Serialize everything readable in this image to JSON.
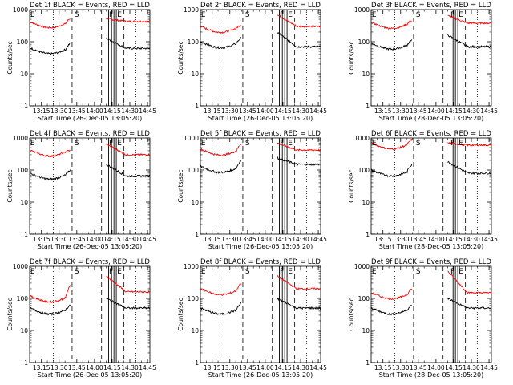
{
  "chart_data": [
    {
      "type": "line",
      "title": "Det 1f BLACK = Events, RED = LLD",
      "ylabel": "Counts/sec",
      "xlabel": "Start Time (26-Dec-05 13:05:20)",
      "yscale": "log",
      "ylim": [
        1,
        1000
      ],
      "xlim": [
        "13:05",
        "14:47"
      ],
      "xticks": [
        "13:15",
        "13:30",
        "13:45",
        "14:00",
        "14:15",
        "14:30",
        "14:45"
      ],
      "yticks": [
        "1",
        "10",
        "100",
        "1000"
      ],
      "markers": [
        "E",
        "S",
        "F",
        "E"
      ],
      "series": [
        {
          "name": "BLACK",
          "color": "#000000"
        },
        {
          "name": "RED",
          "color": "#ff0000"
        }
      ],
      "red_start": 420,
      "black_start": 65,
      "red_gap_in": 530,
      "red_gap_out": 520,
      "black_gap_in": 90,
      "black_gap_out": 130,
      "red_end": 430,
      "black_end": 62
    },
    {
      "type": "line",
      "title": "Det 2f BLACK = Events, RED = LLD",
      "ylabel": "Counts/sec",
      "xlabel": "Start Time (26-Dec-05 13:05:20)",
      "yscale": "log",
      "ylim": [
        1,
        1000
      ],
      "xlim": [
        "13:05",
        "14:47"
      ],
      "xticks": [
        "13:15",
        "13:30",
        "13:45",
        "14:00",
        "14:15",
        "14:30",
        "14:45"
      ],
      "yticks": [
        "1",
        "10",
        "100",
        "1000"
      ],
      "markers": [
        "E",
        "S",
        "F",
        "E"
      ],
      "series": [
        {
          "name": "BLACK",
          "color": "#000000"
        },
        {
          "name": "RED",
          "color": "#ff0000"
        }
      ],
      "red_start": 300,
      "black_start": 100,
      "red_gap_in": 330,
      "red_gap_out": 700,
      "black_gap_in": 130,
      "black_gap_out": 200,
      "red_end": 300,
      "black_end": 70
    },
    {
      "type": "line",
      "title": "Det 3f BLACK = Events, RED = LLD",
      "ylabel": "Counts/sec",
      "xlabel": "Start Time (28-Dec-05 13:05:20)",
      "yscale": "log",
      "ylim": [
        1,
        1000
      ],
      "xlim": [
        "13:05",
        "14:47"
      ],
      "xticks": [
        "13:15",
        "13:30",
        "13:45",
        "14:00",
        "14:15",
        "14:30",
        "14:45"
      ],
      "yticks": [
        "1",
        "10",
        "100",
        "1000"
      ],
      "markers": [
        "E",
        "S",
        "F",
        "E"
      ],
      "series": [
        {
          "name": "BLACK",
          "color": "#000000"
        },
        {
          "name": "RED",
          "color": "#ff0000"
        }
      ],
      "red_start": 400,
      "black_start": 90,
      "red_gap_in": 450,
      "red_gap_out": 650,
      "black_gap_in": 110,
      "black_gap_out": 160,
      "red_end": 380,
      "black_end": 70
    },
    {
      "type": "line",
      "title": "Det 4f BLACK = Events, RED = LLD",
      "ylabel": "Counts/sec",
      "xlabel": "Start Time (26-Dec-05 13:05:20)",
      "yscale": "log",
      "ylim": [
        1,
        1000
      ],
      "xlim": [
        "13:05",
        "14:47"
      ],
      "xticks": [
        "13:15",
        "13:30",
        "13:45",
        "14:00",
        "14:15",
        "14:30",
        "14:45"
      ],
      "yticks": [
        "1",
        "10",
        "100",
        "1000"
      ],
      "markers": [
        "E",
        "S",
        "F",
        "E"
      ],
      "series": [
        {
          "name": "BLACK",
          "color": "#000000"
        },
        {
          "name": "RED",
          "color": "#ff0000"
        }
      ],
      "red_start": 420,
      "black_start": 80,
      "red_gap_in": 400,
      "red_gap_out": 650,
      "black_gap_in": 100,
      "black_gap_out": 150,
      "red_end": 300,
      "black_end": 65
    },
    {
      "type": "line",
      "title": "Det 5f BLACK = Events, RED = LLD",
      "ylabel": "Counts/sec",
      "xlabel": "Start Time (26-Dec-05 13:05:20)",
      "yscale": "log",
      "ylim": [
        1,
        1000
      ],
      "xlim": [
        "13:05",
        "14:47"
      ],
      "xticks": [
        "13:15",
        "13:30",
        "13:45",
        "14:00",
        "14:15",
        "14:30",
        "14:45"
      ],
      "yticks": [
        "1",
        "10",
        "100",
        "1000"
      ],
      "markers": [
        "E",
        "S",
        "F",
        "E"
      ],
      "series": [
        {
          "name": "BLACK",
          "color": "#000000"
        },
        {
          "name": "RED",
          "color": "#ff0000"
        }
      ],
      "red_start": 450,
      "black_start": 130,
      "red_gap_in": 650,
      "red_gap_out": 700,
      "black_gap_in": 200,
      "black_gap_out": 240,
      "red_end": 420,
      "black_end": 150
    },
    {
      "type": "line",
      "title": "Det 6f BLACK = Events, RED = LLD",
      "ylabel": "Counts/sec",
      "xlabel": "Start Time (28-Dec-05 13:05:20)",
      "yscale": "log",
      "ylim": [
        1,
        1000
      ],
      "xlim": [
        "13:05",
        "14:47"
      ],
      "xticks": [
        "13:15",
        "13:30",
        "13:45",
        "14:00",
        "14:15",
        "14:30",
        "14:45"
      ],
      "yticks": [
        "1",
        "10",
        "100",
        "1000"
      ],
      "markers": [
        "E",
        "S",
        "F",
        "E"
      ],
      "series": [
        {
          "name": "BLACK",
          "color": "#000000"
        },
        {
          "name": "RED",
          "color": "#ff0000"
        }
      ],
      "red_start": 700,
      "black_start": 100,
      "red_gap_in": 900,
      "red_gap_out": 700,
      "black_gap_in": 150,
      "black_gap_out": 180,
      "red_end": 600,
      "black_end": 80
    },
    {
      "type": "line",
      "title": "Det 7f BLACK = Events, RED = LLD",
      "ylabel": "Counts/sec",
      "xlabel": "Start Time (26-Dec-05 13:05:20)",
      "yscale": "log",
      "ylim": [
        1,
        1000
      ],
      "xlim": [
        "13:05",
        "14:47"
      ],
      "xticks": [
        "13:15",
        "13:30",
        "13:45",
        "14:00",
        "14:15",
        "14:30",
        "14:45"
      ],
      "yticks": [
        "1",
        "10",
        "100",
        "1000"
      ],
      "markers": [
        "E",
        "S",
        "F",
        "E"
      ],
      "series": [
        {
          "name": "BLACK",
          "color": "#000000"
        },
        {
          "name": "RED",
          "color": "#ff0000"
        }
      ],
      "red_start": 120,
      "black_start": 50,
      "red_gap_in": 250,
      "red_gap_out": 500,
      "black_gap_in": 60,
      "black_gap_out": 100,
      "red_end": 160,
      "black_end": 50
    },
    {
      "type": "line",
      "title": "Det 8f BLACK = Events, RED = LLD",
      "ylabel": "Counts/sec",
      "xlabel": "Start Time (26-Dec-05 13:05:20)",
      "yscale": "log",
      "ylim": [
        1,
        1000
      ],
      "xlim": [
        "13:05",
        "14:47"
      ],
      "xticks": [
        "13:15",
        "13:30",
        "13:45",
        "14:00",
        "14:15",
        "14:30",
        "14:45"
      ],
      "yticks": [
        "1",
        "10",
        "100",
        "1000"
      ],
      "markers": [
        "E",
        "S",
        "F",
        "E"
      ],
      "series": [
        {
          "name": "BLACK",
          "color": "#000000"
        },
        {
          "name": "RED",
          "color": "#ff0000"
        }
      ],
      "red_start": 200,
      "black_start": 50,
      "red_gap_in": 300,
      "red_gap_out": 500,
      "black_gap_in": 70,
      "black_gap_out": 100,
      "red_end": 200,
      "black_end": 50
    },
    {
      "type": "line",
      "title": "Det 9f BLACK = Events, RED = LLD",
      "ylabel": "Counts/sec",
      "xlabel": "Start Time (28-Dec-05 13:05:20)",
      "yscale": "log",
      "ylim": [
        1,
        1000
      ],
      "xlim": [
        "13:05",
        "14:47"
      ],
      "xticks": [
        "13:15",
        "13:30",
        "13:45",
        "14:00",
        "14:15",
        "14:30",
        "14:45"
      ],
      "yticks": [
        "1",
        "10",
        "100",
        "1000"
      ],
      "markers": [
        "E",
        "S",
        "F",
        "E"
      ],
      "series": [
        {
          "name": "BLACK",
          "color": "#000000"
        },
        {
          "name": "RED",
          "color": "#ff0000"
        }
      ],
      "red_start": 150,
      "black_start": 50,
      "red_gap_in": 200,
      "red_gap_out": 700,
      "black_gap_in": 60,
      "black_gap_out": 100,
      "red_end": 150,
      "black_end": 50
    }
  ]
}
